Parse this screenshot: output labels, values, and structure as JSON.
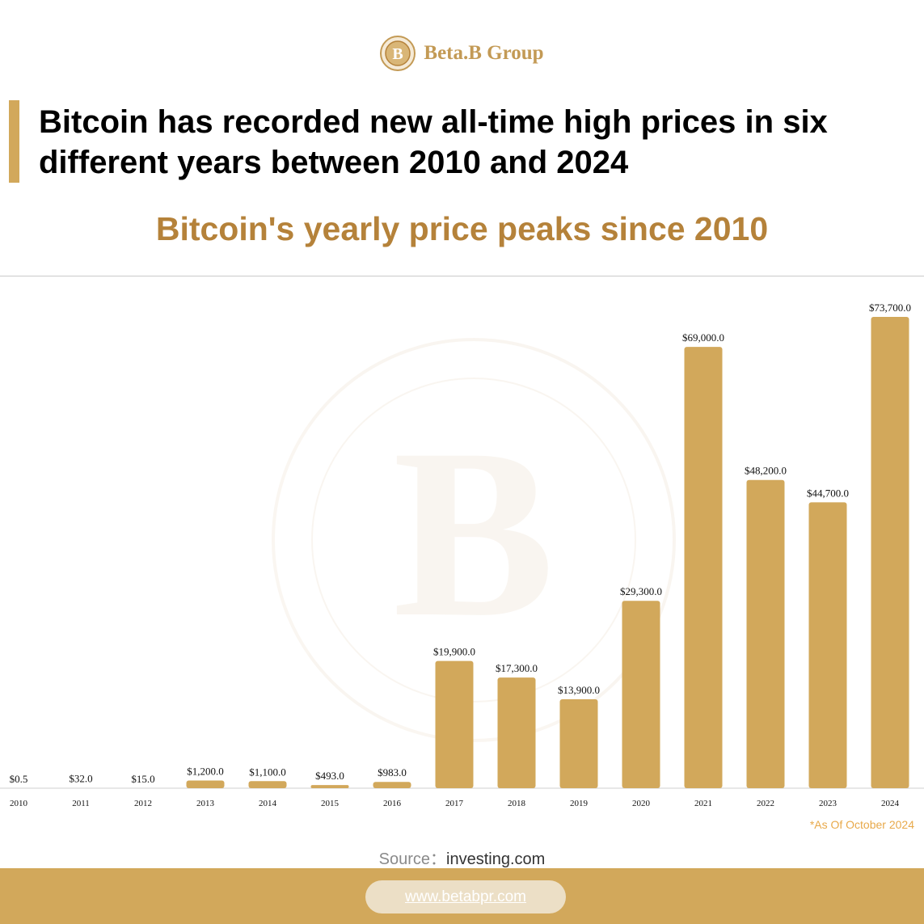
{
  "brand": {
    "name": "Beta.B Group"
  },
  "headline": "Bitcoin has recorded new all-time high prices in six different years between 2010 and 2024",
  "chart_data": {
    "type": "bar",
    "title": "Bitcoin's yearly price peaks since 2010",
    "categories": [
      "2010",
      "2011",
      "2012",
      "2013",
      "2014",
      "2015",
      "2016",
      "2017",
      "2018",
      "2019",
      "2020",
      "2021",
      "2022",
      "2023",
      "2024"
    ],
    "values": [
      0.5,
      32,
      15,
      1200,
      1100,
      493,
      983,
      19900,
      17300,
      13900,
      29300,
      69000,
      48200,
      44700,
      73700
    ],
    "data_labels": [
      "$0.5",
      "$32.0",
      "$15.0",
      "$1,200.0",
      "$1,100.0",
      "$493.0",
      "$983.0",
      "$19,900.0",
      "$17,300.0",
      "$13,900.0",
      "$29,300.0",
      "$69,000.0",
      "$48,200.0",
      "$44,700.0",
      "$73,700.0"
    ],
    "ylim": [
      0,
      80000
    ],
    "grid": false,
    "bar_color": "#d2a85b"
  },
  "note": "*As Of October 2024",
  "source": {
    "label": "Source：",
    "value": "investing.com"
  },
  "footer": {
    "url": "www.betabpr.com"
  },
  "colors": {
    "accent": "#d2a85b",
    "title": "#b5823a",
    "note": "#e8a94a"
  }
}
